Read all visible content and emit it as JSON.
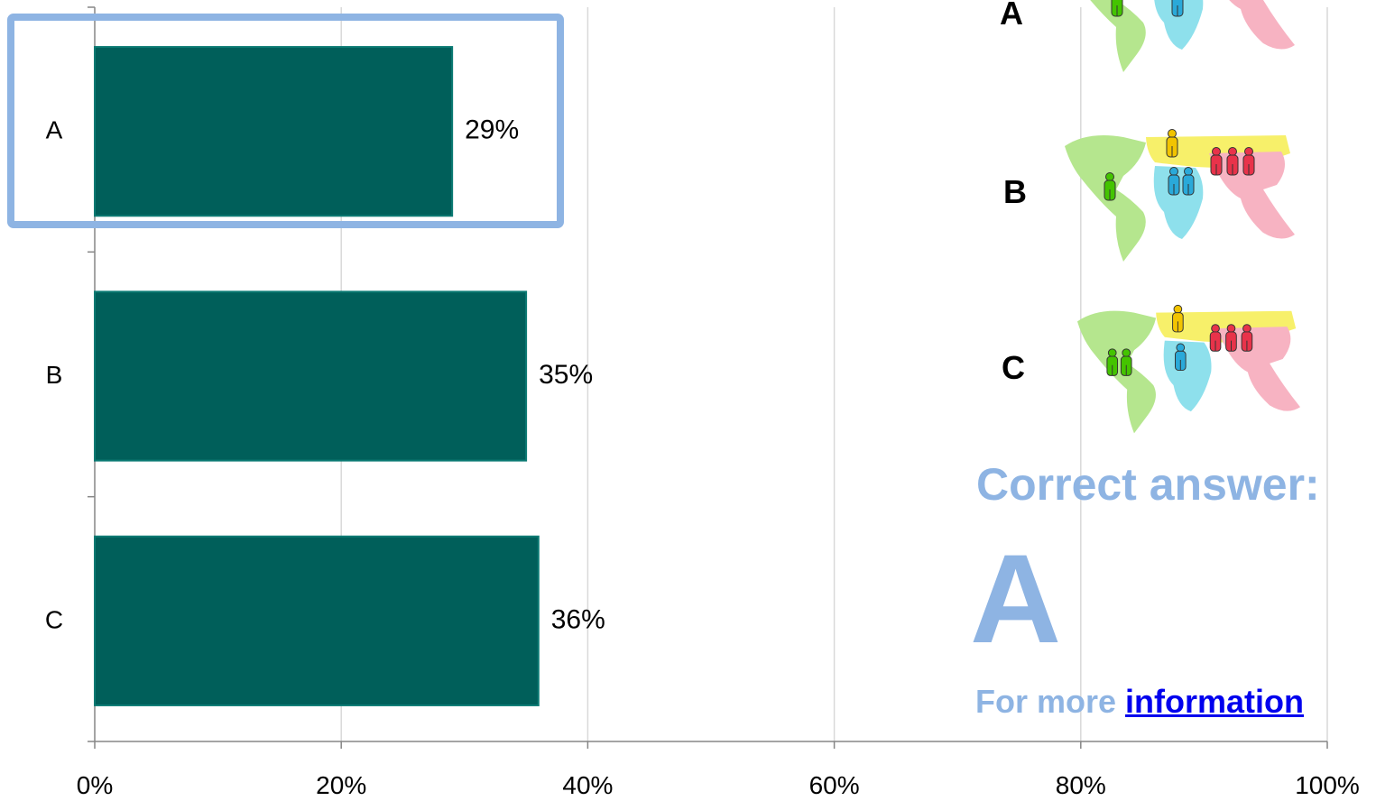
{
  "chart_data": {
    "type": "bar",
    "orientation": "horizontal",
    "categories": [
      "A",
      "B",
      "C"
    ],
    "values": [
      29,
      35,
      36
    ],
    "data_labels": [
      "29%",
      "35%",
      "36%"
    ],
    "xlim": [
      0,
      100
    ],
    "x_ticks": [
      "0%",
      "20%",
      "40%",
      "60%",
      "80%",
      "100%"
    ],
    "x_tick_values": [
      0,
      20,
      40,
      60,
      80,
      100
    ],
    "grid": "vertical",
    "bar_color": "#005f5a",
    "highlight_category": "A",
    "highlight_color": "#8eb4e3"
  },
  "options": [
    {
      "letter": "A",
      "map_icon": "world-map-population-icon"
    },
    {
      "letter": "B",
      "map_icon": "world-map-population-icon"
    },
    {
      "letter": "C",
      "map_icon": "world-map-population-icon"
    }
  ],
  "answer": {
    "heading": "Correct answer:",
    "letter": "A",
    "more_prefix": "For more ",
    "more_link": "information"
  },
  "colors": {
    "americas": "#b5e68e",
    "europe_asia": "#f7f06a",
    "africa": "#8ee0ec",
    "asia_south": "#f7b3c2",
    "person_green": "#44c400",
    "person_yellow": "#f2c400",
    "person_blue": "#2aa9d9",
    "person_red": "#e8334a"
  }
}
